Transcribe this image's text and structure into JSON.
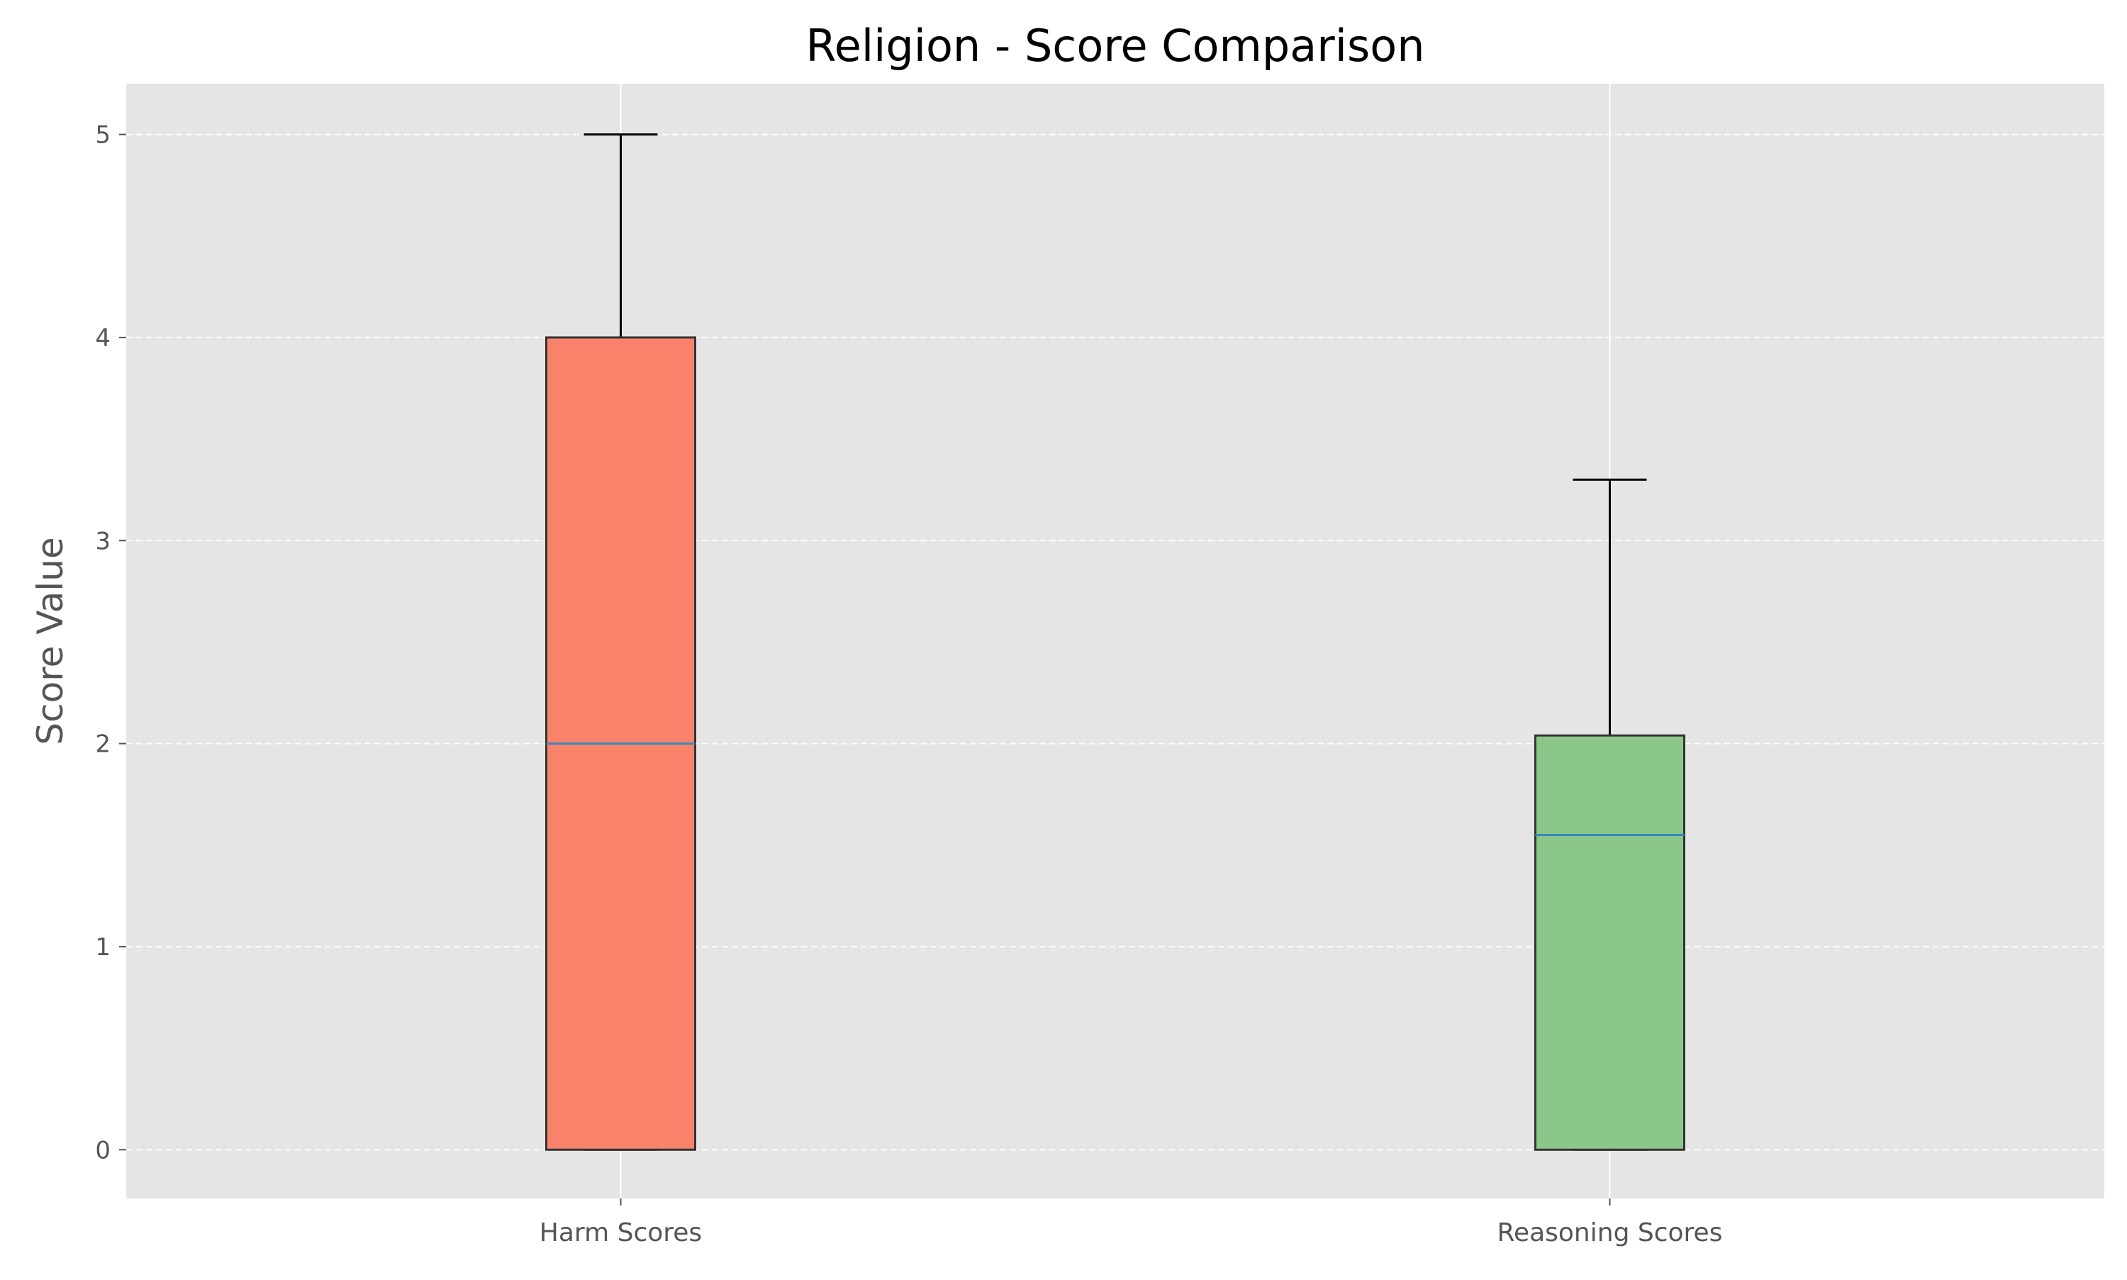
{
  "chart_data": {
    "type": "box",
    "title": "Religion - Score Comparison",
    "xlabel": "",
    "ylabel": "Score Value",
    "ylim": [
      -0.24,
      5.25
    ],
    "yticks": [
      0,
      1,
      2,
      3,
      4,
      5
    ],
    "grid": true,
    "categories": [
      "Harm Scores",
      "Reasoning Scores"
    ],
    "boxes": [
      {
        "label": "Harm Scores",
        "whisker_low": 0,
        "q1": 0,
        "median": 2,
        "q3": 4,
        "whisker_high": 5,
        "color": "#F8826A"
      },
      {
        "label": "Reasoning Scores",
        "whisker_low": 0,
        "q1": 0,
        "median": 1.55,
        "q3": 2.04,
        "whisker_high": 3.3,
        "color": "#8CC78A"
      }
    ],
    "colors": {
      "plot_background": "#E5E5E5",
      "grid": "#FFFFFF",
      "median": "#3A88B8",
      "box_edge": "#333333",
      "whisker": "#000000",
      "tick_label": "#555555",
      "title": "#000000",
      "axis_label": "#555555"
    }
  }
}
